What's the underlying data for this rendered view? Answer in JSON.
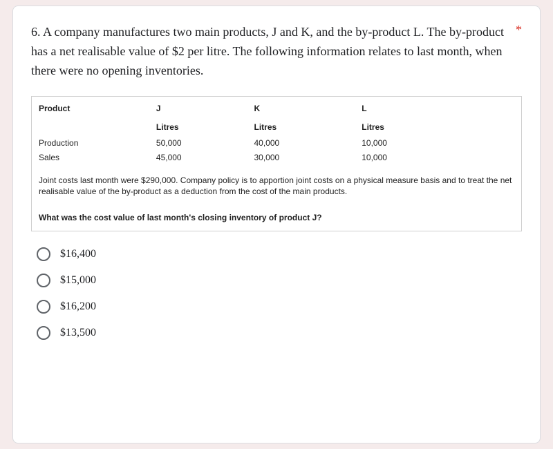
{
  "colors": {
    "page_bg": "#f5ebeb",
    "card_bg": "#ffffff",
    "card_border": "#dadce0",
    "text": "#202124",
    "required": "#d93025",
    "table_border": "#cfcfcf",
    "radio_border": "#5f6368"
  },
  "typography": {
    "question_font": "Georgia, serif",
    "question_size_pt": 14,
    "table_size_pt": 9,
    "option_size_pt": 12
  },
  "question": {
    "number_and_text": "6. A company manufactures two main products, J and K, and the by-product L. The by-product has a net realisable value of $2 per litre. The following information relates to last month, when there were no opening inventories.",
    "required_marker": "*"
  },
  "table": {
    "columns": [
      "Product",
      "J",
      "K",
      "L"
    ],
    "units_row": [
      "",
      "Litres",
      "Litres",
      "Litres"
    ],
    "rows": [
      [
        "Production",
        "50,000",
        "40,000",
        "10,000"
      ],
      [
        "Sales",
        "45,000",
        "30,000",
        "10,000"
      ]
    ]
  },
  "note_text": "Joint costs last month were $290,000.  Company policy is to apportion joint costs on a physical measure basis and to treat the net realisable value of the by-product as a deduction from the cost of the main products.",
  "sub_question": "What was the cost value of last month's closing inventory of product J?",
  "options": [
    {
      "label": "$16,400"
    },
    {
      "label": "$15,000"
    },
    {
      "label": "$16,200"
    },
    {
      "label": "$13,500"
    }
  ]
}
